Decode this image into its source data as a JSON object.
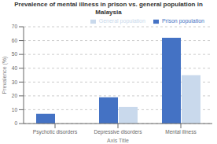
{
  "chart_data": {
    "type": "bar",
    "title": "Prevalence of mental illness in prison vs. general population in\nMalaysia",
    "categories": [
      "Psychotic disorders",
      "Depressive disorders",
      "Mental illness"
    ],
    "series": [
      {
        "name": "Prison population",
        "color": "#4472C4",
        "values": [
          7,
          19,
          62
        ]
      },
      {
        "name": "General population",
        "color": "#C9D9EC",
        "values": [
          0,
          12,
          35
        ]
      }
    ],
    "xlabel": "Axis Title",
    "ylabel": "Prevalence (%)",
    "ylim": [
      0,
      70
    ],
    "yticks": [
      0,
      10,
      20,
      30,
      40,
      50,
      60,
      70
    ],
    "grid": true,
    "legend": "upper right"
  }
}
